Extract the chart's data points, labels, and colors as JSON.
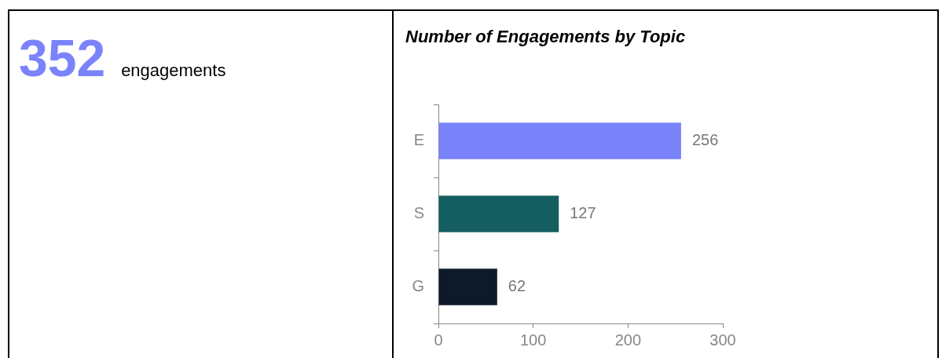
{
  "chart_data": [
    {
      "type": "other",
      "annotations": [
        "352",
        "engagements"
      ],
      "color": "#7b83fa"
    },
    {
      "type": "bar",
      "title": "Number of Engagements by Topic",
      "orientation": "horizontal",
      "categories": [
        "E",
        "S",
        "G"
      ],
      "values": [
        256,
        127,
        62
      ],
      "colors": [
        "#7b83fa",
        "#155e60",
        "#0e1a28"
      ],
      "xlim": [
        0,
        300
      ],
      "xticks": [
        0,
        100,
        200,
        300
      ],
      "data_labels": true,
      "grid": false
    }
  ]
}
